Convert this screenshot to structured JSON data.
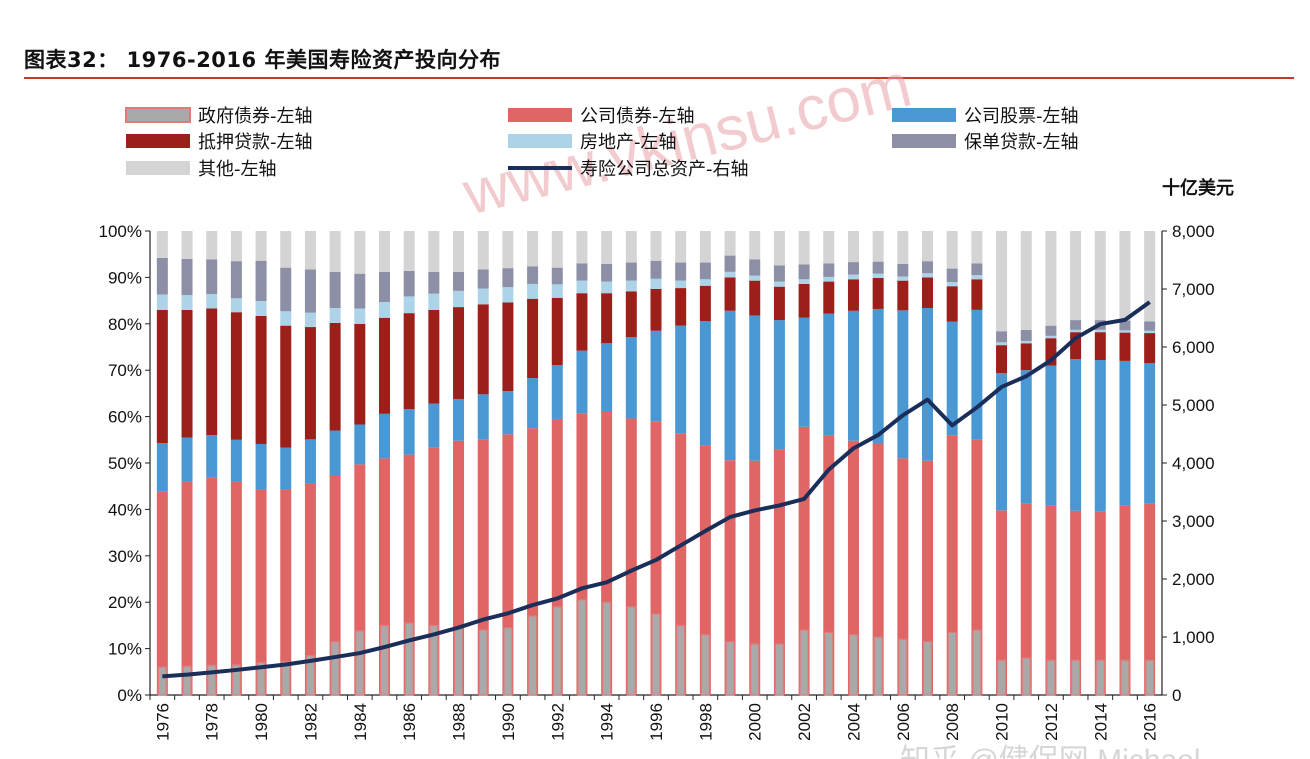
{
  "title": "图表32：  1976-2016 年美国寿险资产投向分布",
  "watermark": "www.vkinsu.com",
  "footer_watermark": "知乎 @健保网 Michael",
  "colors": {
    "gov_bonds": "#a9a9a9",
    "gov_bonds_edge": "#e07b7b",
    "corp_bonds": "#e06666",
    "corp_stocks": "#4a98d3",
    "mortgage": "#9c1f1a",
    "real_estate": "#add3e8",
    "policy_loans": "#8c8fa6",
    "other": "#d4d4d4",
    "total_assets_line": "#1a2e5a",
    "title_rule": "#c0392b",
    "watermark": "#e8a0a8"
  },
  "chart_data": {
    "type": "bar",
    "stacked": true,
    "percent_stacked": true,
    "x": [
      1976,
      1977,
      1978,
      1979,
      1980,
      1981,
      1982,
      1983,
      1984,
      1985,
      1986,
      1987,
      1988,
      1989,
      1990,
      1991,
      1992,
      1993,
      1994,
      1995,
      1996,
      1997,
      1998,
      1999,
      2000,
      2001,
      2002,
      2003,
      2004,
      2005,
      2006,
      2007,
      2008,
      2009,
      2010,
      2011,
      2012,
      2013,
      2014,
      2015,
      2016
    ],
    "x_tick_labels": [
      "1976",
      "1978",
      "1980",
      "1982",
      "1984",
      "1986",
      "1988",
      "1990",
      "1992",
      "1994",
      "1996",
      "1998",
      "2000",
      "2002",
      "2004",
      "2006",
      "2008",
      "2010",
      "2012",
      "2014",
      "2016"
    ],
    "y_left": {
      "range": [
        0,
        100
      ],
      "ticks": [
        "0%",
        "10%",
        "20%",
        "30%",
        "40%",
        "50%",
        "60%",
        "70%",
        "80%",
        "90%",
        "100%"
      ]
    },
    "y_right": {
      "range": [
        0,
        8000
      ],
      "unit": "十亿美元",
      "ticks": [
        "0",
        "1,000",
        "2,000",
        "3,000",
        "4,000",
        "5,000",
        "6,000",
        "7,000",
        "8,000"
      ]
    },
    "legend": [
      {
        "key": "gov_bonds",
        "label": "政府债券-左轴"
      },
      {
        "key": "corp_bonds",
        "label": "公司债券-左轴"
      },
      {
        "key": "corp_stocks",
        "label": "公司股票-左轴"
      },
      {
        "key": "mortgage",
        "label": "抵押贷款-左轴"
      },
      {
        "key": "real_estate",
        "label": "房地产-左轴"
      },
      {
        "key": "policy_loans",
        "label": "保单贷款-左轴"
      },
      {
        "key": "other",
        "label": "其他-左轴"
      },
      {
        "key": "total_assets",
        "label": "寿险公司总资产-右轴"
      }
    ],
    "series": [
      {
        "key": "corp_bonds",
        "name": "公司债券-左轴",
        "values": [
          43.8,
          46,
          46.8,
          46,
          44.3,
          44.3,
          45.5,
          47.2,
          49.7,
          51,
          51.8,
          53.3,
          54.8,
          55,
          56.2,
          57.5,
          59.5,
          60.7,
          61,
          59.6,
          59,
          56.4,
          53.8,
          50.6,
          50.5,
          53,
          57.8,
          56,
          54.8,
          54.2,
          51,
          50.5,
          56,
          55,
          39.8,
          41.3,
          40.8,
          39.7,
          39.6,
          40.8,
          41.2
        ]
      },
      {
        "key": "corp_stocks",
        "name": "公司股票-左轴",
        "values": [
          10.5,
          9.5,
          9.2,
          9,
          9.8,
          9,
          9.6,
          9.8,
          8.6,
          9.6,
          9.8,
          9.5,
          9,
          9.8,
          9.3,
          10.8,
          11.6,
          13.5,
          14.8,
          17.5,
          19.5,
          23.2,
          26.8,
          32.2,
          31.3,
          27.8,
          23.5,
          26.2,
          28,
          29,
          31.9,
          32.9,
          24.5,
          28,
          29.6,
          28.7,
          30.2,
          32.7,
          32.6,
          31.2,
          30.3
        ]
      },
      {
        "key": "mortgage",
        "name": "抵押贷款-左轴",
        "values": [
          28.7,
          27.5,
          27.3,
          27.5,
          27.6,
          26.3,
          24.2,
          23.2,
          21.7,
          20.7,
          20.7,
          20.2,
          19.8,
          19.4,
          19.1,
          17.1,
          14.5,
          12.4,
          10.8,
          9.9,
          9,
          8.1,
          7.6,
          7.2,
          7.5,
          7.2,
          7.3,
          6.9,
          6.8,
          6.7,
          6.4,
          6.6,
          7.6,
          6.6,
          6,
          5.8,
          5.9,
          5.8,
          6,
          6.1,
          6.5
        ]
      },
      {
        "key": "real_estate",
        "name": "房地产-左轴",
        "values": [
          3.3,
          3.2,
          3.1,
          3,
          3.2,
          3.1,
          3.1,
          3.2,
          3.3,
          3.4,
          3.6,
          3.5,
          3.5,
          3.4,
          3.3,
          3.2,
          2.9,
          2.7,
          2.5,
          2.3,
          2.2,
          1.6,
          1.4,
          1.2,
          1.1,
          1.1,
          1,
          1,
          1,
          0.9,
          0.9,
          0.9,
          0.9,
          0.9,
          0.6,
          0.5,
          0.5,
          0.5,
          0.5,
          0.5,
          0.5
        ]
      },
      {
        "key": "policy_loans",
        "name": "保单贷款-左轴",
        "values": [
          7.9,
          7.8,
          7.5,
          8,
          8.7,
          9.4,
          9.3,
          7.8,
          7.5,
          6.5,
          5.5,
          4.7,
          4.1,
          4.1,
          4.1,
          3.8,
          3.6,
          3.7,
          3.8,
          3.9,
          3.9,
          3.9,
          3.6,
          3.5,
          3.5,
          3.5,
          3.2,
          2.9,
          2.7,
          2.6,
          2.7,
          2.6,
          2.9,
          2.5,
          2.4,
          2.4,
          2.2,
          2.1,
          2.1,
          2.1,
          2
        ]
      },
      {
        "key": "other",
        "name": "其他-左轴",
        "values": [
          5.8,
          6,
          6.1,
          6.5,
          6.4,
          7.9,
          8.3,
          8.8,
          9.2,
          8.8,
          8.6,
          8.8,
          8.8,
          8.3,
          8,
          7.6,
          7.9,
          7,
          7.1,
          6.8,
          6.4,
          6.8,
          6.8,
          5.3,
          6.1,
          7.4,
          7.2,
          7,
          6.7,
          6.6,
          7.1,
          6.5,
          8.1,
          7,
          21.6,
          21.3,
          20.4,
          19.2,
          19.2,
          19.3,
          19.5
        ]
      },
      {
        "key": "gov_bonds",
        "name": "政府债券-左轴",
        "values": [
          6,
          6.2,
          6.4,
          6.5,
          7,
          7.2,
          8.5,
          11.5,
          13.8,
          15,
          15.5,
          15,
          14.5,
          14,
          14.5,
          17,
          19,
          20.5,
          20,
          19,
          17.5,
          15,
          13,
          11.5,
          11,
          11,
          14,
          13.5,
          13,
          12.5,
          12,
          11.5,
          13.5,
          14,
          7.5,
          8,
          7.5,
          7.5,
          7.5,
          7.5,
          7.5
        ]
      },
      {
        "key": "total_assets",
        "name": "寿险公司总资产-右轴",
        "type": "line",
        "axis": "right",
        "values": [
          321,
          351,
          390,
          432,
          479,
          526,
          588,
          654,
          723,
          826,
          940,
          1044,
          1163,
          1300,
          1408,
          1551,
          1665,
          1839,
          1942,
          2144,
          2328,
          2579,
          2827,
          3068,
          3182,
          3269,
          3380,
          3886,
          4253,
          4482,
          4823,
          5092,
          4649,
          4958,
          5311,
          5496,
          5771,
          6152,
          6395,
          6468,
          6774
        ]
      }
    ]
  }
}
